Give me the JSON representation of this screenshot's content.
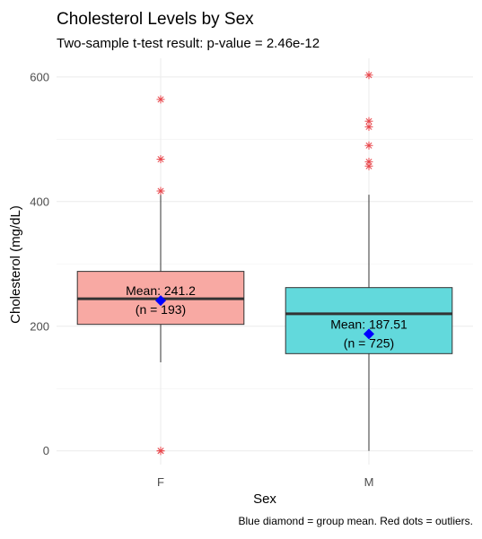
{
  "chart_data": {
    "type": "boxplot",
    "title": "Cholesterol Levels by Sex",
    "subtitle": "Two-sample t-test result: p-value = 2.46e-12",
    "xlabel": "Sex",
    "ylabel": "Cholesterol (mg/dL)",
    "caption": "Blue diamond = group mean. Red dots = outliers.",
    "categories": [
      "F",
      "M"
    ],
    "ylim": [
      -22,
      630
    ],
    "y_ticks": [
      0,
      200,
      400,
      600
    ],
    "grid": true,
    "groups": [
      {
        "name": "F",
        "fill": "#f8a9a3",
        "whisker_low": 142,
        "q1": 203,
        "median": 244,
        "q3": 288,
        "whisker_high": 413,
        "mean": 241.2,
        "n": 193,
        "outliers": [
          0,
          0,
          417,
          468,
          564
        ],
        "label_line1": "Mean: 241.2",
        "label_line2": "(n = 193)"
      },
      {
        "name": "M",
        "fill": "#62d9dc",
        "whisker_low": 0,
        "q1": 156,
        "median": 220,
        "q3": 262,
        "whisker_high": 411,
        "mean": 187.51,
        "n": 725,
        "outliers": [
          457,
          464,
          490,
          520,
          529,
          603
        ],
        "label_line1": "Mean: 187.51",
        "label_line2": "(n = 725)"
      }
    ],
    "colors": {
      "mean_marker": "#0000ff",
      "outlier": "#e8474c",
      "median_line": "#333333",
      "box_border": "#333333"
    }
  }
}
